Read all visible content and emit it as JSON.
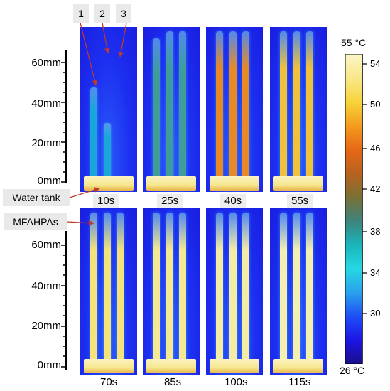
{
  "tube_labels": [
    "1",
    "2",
    "3"
  ],
  "annotations": {
    "water_tank": "Water tank",
    "mfahpas": "MFAHPAs"
  },
  "y_axis_top": [
    "60mm",
    "40mm",
    "20mm",
    "0mm"
  ],
  "y_axis_bottom": [
    "60mm",
    "40mm",
    "20mm",
    "0mm"
  ],
  "time_labels": [
    "10s",
    "25s",
    "40s",
    "55s",
    "70s",
    "85s",
    "100s",
    "115s"
  ],
  "colorbar": {
    "max_label": "55 °C",
    "min_label": "26 °C",
    "ticks": [
      "54",
      "50",
      "46",
      "42",
      "38",
      "34",
      "30"
    ],
    "colors": [
      "#fbf6c8",
      "#f8e88a",
      "#f7d43b",
      "#f39d1d",
      "#e76816",
      "#b8621f",
      "#7a7035",
      "#3e837c",
      "#1ab5ba",
      "#27d7e3",
      "#2aa2ec",
      "#1e4ef5",
      "#1c16e5",
      "#1a0d8a"
    ]
  },
  "frames": [
    {
      "time": "10s",
      "tube_fill": [
        0.62,
        0.38,
        0.0
      ],
      "tube_color": "#1aa6d8"
    },
    {
      "time": "25s",
      "tube_fill": [
        0.95,
        1.0,
        1.0
      ],
      "tube_color": "#3f9c9a"
    },
    {
      "time": "40s",
      "tube_fill": [
        1.0,
        1.0,
        1.0
      ],
      "tube_color": "#e78a26"
    },
    {
      "time": "55s",
      "tube_fill": [
        1.0,
        1.0,
        1.0
      ],
      "tube_color": "#f0c23a"
    },
    {
      "time": "70s",
      "tube_fill": [
        1.0,
        1.0,
        1.0
      ],
      "tube_color": "#f4e27a"
    },
    {
      "time": "85s",
      "tube_fill": [
        1.0,
        1.0,
        1.0
      ],
      "tube_color": "#f6e890"
    },
    {
      "time": "100s",
      "tube_fill": [
        1.0,
        1.0,
        1.0
      ],
      "tube_color": "#f4eca4"
    },
    {
      "time": "115s",
      "tube_fill": [
        1.0,
        1.0,
        1.0
      ],
      "tube_color": "#f4eeb0"
    }
  ]
}
